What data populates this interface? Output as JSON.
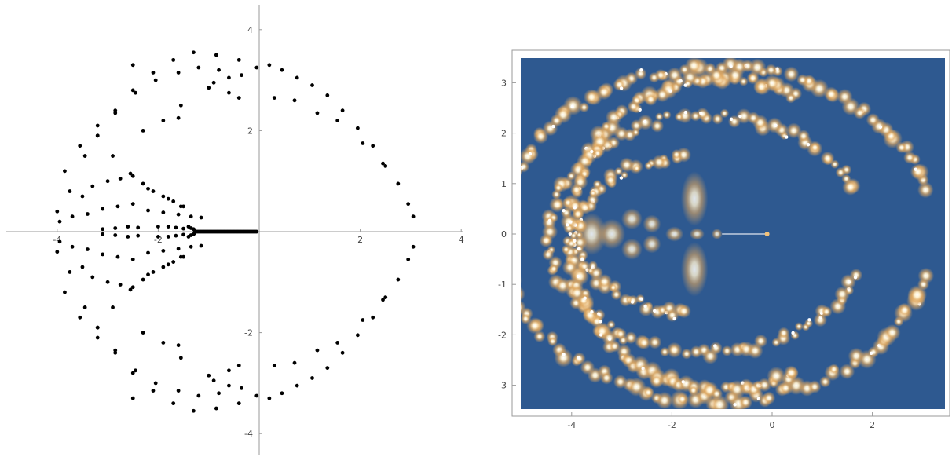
{
  "colors": {
    "axis": "#9a9a9a",
    "tick_label": "#444444",
    "point": "#000000",
    "frame": "#9a9a9a",
    "density_background": "#2e5990",
    "density_mid": "#e0a860",
    "density_peak": "#ffffff"
  },
  "chart_data": [
    {
      "type": "scatter",
      "title": "",
      "xlabel": "",
      "ylabel": "",
      "xlim": [
        -4.25,
        4.15
      ],
      "ylim": [
        -4.6,
        4.5
      ],
      "xticks": [
        -4,
        -2,
        2,
        4
      ],
      "yticks": [
        -4,
        -2,
        2,
        4
      ],
      "xtick_labels": [
        "-4",
        "-2",
        "2",
        "4"
      ],
      "ytick_labels": [
        "-4",
        "-2",
        "2",
        "4"
      ],
      "grid": false,
      "frame": false,
      "series": [
        {
          "x": [
            -4.0,
            -3.95,
            -3.75,
            -3.45,
            -3.2,
            -2.85,
            -2.5,
            -2.1,
            -1.7,
            -1.3,
            -0.85,
            -0.4,
            -0.05,
            -3.85,
            -3.55,
            -3.2,
            -2.85,
            -2.45,
            -2.05,
            -1.6,
            -1.2,
            -0.8,
            -0.35,
            -3.2,
            -2.9,
            -2.55,
            -2.2,
            -1.8,
            -1.5,
            -2.3,
            -1.9,
            -1.55,
            -3.7,
            -3.4,
            -3.1,
            -2.8,
            -2.5,
            -2.2,
            -1.9,
            -1.6,
            -1.35,
            -1.15,
            -3.5,
            -3.3,
            -3.0,
            -2.75,
            -2.5,
            -2.3,
            -2.1,
            -1.9,
            -1.7,
            -1.55,
            -3.1,
            -2.85,
            -2.6,
            -2.4,
            -2.0,
            -1.8,
            -1.65,
            -1.5,
            -1.4,
            -1.35,
            -1.3,
            -1.28,
            0.2,
            0.45,
            0.75,
            1.05,
            1.35,
            1.65,
            1.95,
            2.25,
            2.5,
            2.75,
            2.95,
            3.05,
            0.3,
            0.7,
            1.15,
            1.55,
            2.05,
            2.45,
            -1.0,
            -0.6,
            -0.4,
            -0.6,
            -0.9,
            -1.6,
            -2.5
          ],
          "y": [
            0.4,
            0.2,
            0.8,
            1.5,
            1.9,
            2.35,
            2.8,
            3.15,
            3.4,
            3.55,
            3.5,
            3.4,
            3.25,
            1.2,
            1.7,
            2.1,
            2.4,
            2.75,
            3.0,
            3.15,
            3.25,
            3.2,
            3.1,
            1.9,
            1.5,
            1.15,
            0.85,
            0.65,
            0.5,
            2.0,
            2.2,
            2.5,
            0.3,
            0.35,
            0.45,
            0.5,
            0.55,
            0.42,
            0.38,
            0.34,
            0.3,
            0.28,
            0.7,
            0.9,
            1.0,
            1.05,
            1.1,
            0.95,
            0.8,
            0.7,
            0.6,
            0.5,
            0.05,
            0.07,
            0.1,
            0.08,
            0.1,
            0.1,
            0.08,
            0.06,
            0.1,
            0.07,
            0.05,
            0.03,
            3.3,
            3.2,
            3.05,
            2.9,
            2.7,
            2.4,
            2.05,
            1.7,
            1.3,
            0.95,
            0.55,
            0.3,
            2.65,
            2.6,
            2.35,
            2.2,
            1.75,
            1.35,
            2.85,
            2.75,
            2.65,
            3.05,
            2.95,
            2.25,
            3.3
          ],
          "symmetric_about_x_axis": true
        },
        {
          "x_range": [
            -1.25,
            -0.05
          ],
          "y": 0,
          "description_points": 60
        }
      ]
    },
    {
      "type": "heatmap",
      "title": "",
      "xlabel": "",
      "ylabel": "",
      "xlim": [
        -5.1,
        3.5
      ],
      "ylim": [
        -3.5,
        3.5
      ],
      "xticks": [
        -4,
        -2,
        0,
        2
      ],
      "yticks": [
        -3,
        -2,
        -1,
        0,
        1,
        2,
        3
      ],
      "xtick_labels": [
        "-4",
        "-2",
        "0",
        "2"
      ],
      "ytick_labels": [
        "-3",
        "-2",
        "-1",
        "0",
        "1",
        "2",
        "3"
      ],
      "grid": false,
      "frame": true,
      "colormap": [
        "#2e5990",
        "#e0a860",
        "#ffffff"
      ],
      "rings": [
        {
          "cx": -1.1,
          "cy": 0,
          "rx": 4.3,
          "ry": 3.3,
          "start_deg": 16,
          "end_deg": 344,
          "count": 140,
          "brightness": 0.9
        },
        {
          "cx": -1.3,
          "cy": 0,
          "rx": 3.15,
          "ry": 2.35,
          "start_deg": 22,
          "end_deg": 338,
          "count": 110,
          "brightness": 0.75
        },
        {
          "cx": -1.55,
          "cy": 0,
          "rx": 2.35,
          "ry": 1.55,
          "start_deg": 95,
          "end_deg": 265,
          "count": 60,
          "brightness": 0.7
        },
        {
          "cx": -1.0,
          "cy": 0,
          "rx": 3.05,
          "ry": 3.1,
          "start_deg": 62,
          "end_deg": 298,
          "count": 120,
          "brightness": 0.85
        }
      ],
      "blobs": [
        {
          "x": -3.6,
          "y": 0,
          "w": 0.5,
          "h": 0.7
        },
        {
          "x": -3.2,
          "y": 0,
          "w": 0.45,
          "h": 0.5
        },
        {
          "x": -2.8,
          "y": 0.3,
          "w": 0.35,
          "h": 0.35
        },
        {
          "x": -2.8,
          "y": -0.3,
          "w": 0.35,
          "h": 0.35
        },
        {
          "x": -2.4,
          "y": 0.2,
          "w": 0.3,
          "h": 0.3
        },
        {
          "x": -2.4,
          "y": -0.2,
          "w": 0.3,
          "h": 0.3
        },
        {
          "x": -1.95,
          "y": 0,
          "w": 0.3,
          "h": 0.25
        },
        {
          "x": -1.5,
          "y": 0,
          "w": 0.25,
          "h": 0.2
        },
        {
          "x": -1.1,
          "y": 0,
          "w": 0.18,
          "h": 0.18
        },
        {
          "x": -1.55,
          "y": 0.7,
          "w": 0.45,
          "h": 0.9
        },
        {
          "x": -1.55,
          "y": -0.7,
          "w": 0.45,
          "h": 0.9
        }
      ],
      "spike": {
        "x_from": -1.0,
        "x_to": -0.1,
        "y": 0
      }
    }
  ]
}
